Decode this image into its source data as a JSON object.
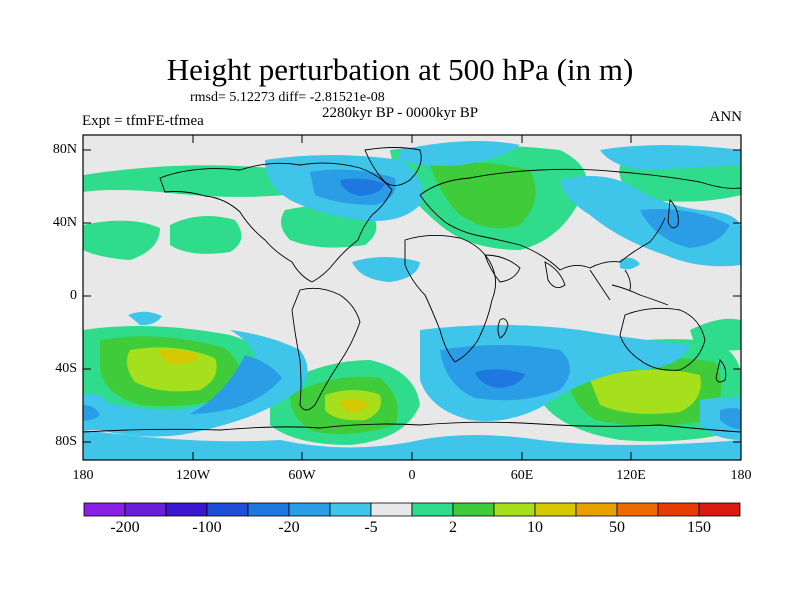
{
  "title": "Height perturbation at 500 hPa (in m)",
  "stats": "rmsd= 5.12273 diff= -2.81521e-08",
  "subtitle": "2280kyr BP - 0000kyr BP",
  "experiment": "Expt = tfmFE-tfmea",
  "season": "ANN",
  "lat_labels": [
    "80N",
    "40N",
    "0",
    "40S",
    "80S"
  ],
  "lon_labels": [
    "180",
    "120W",
    "60W",
    "0",
    "60E",
    "120E",
    "180"
  ],
  "colorbar": {
    "colors": [
      "#8b1fe6",
      "#6a1fd8",
      "#3b18d0",
      "#1f4fd8",
      "#1e78e0",
      "#2a9de6",
      "#3fc4ea",
      "#e8e8e8",
      "#2fdc8c",
      "#40cc3a",
      "#a6e01c",
      "#d6c800",
      "#e8a000",
      "#ec6a00",
      "#e63c00",
      "#d91a10"
    ],
    "tick_labels": [
      "-200",
      "-100",
      "-20",
      "-5",
      "2",
      "10",
      "50",
      "150"
    ]
  }
}
